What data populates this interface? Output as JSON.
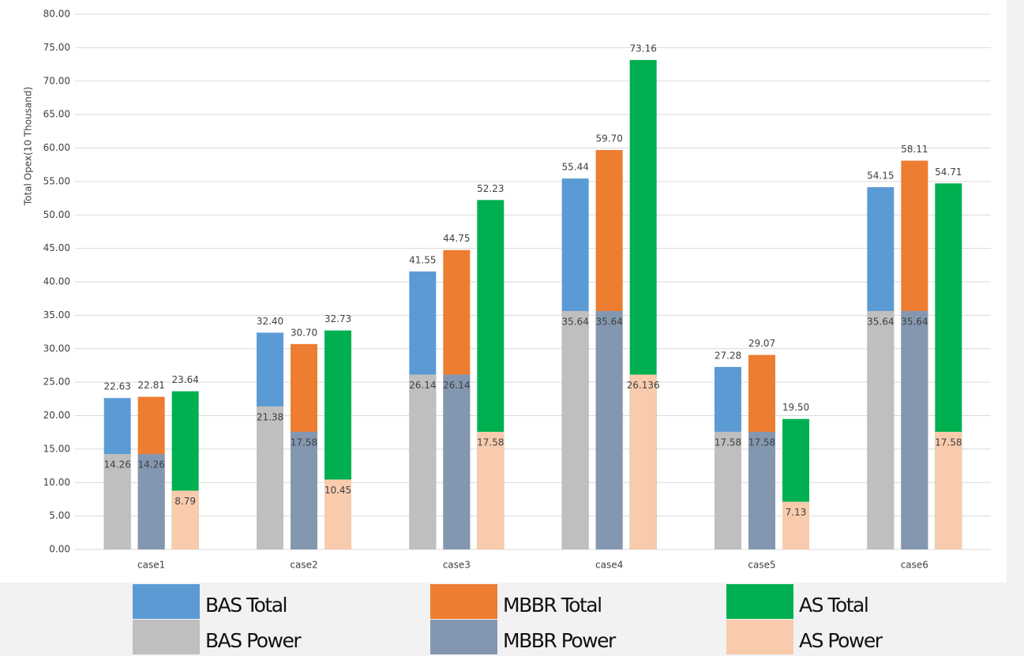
{
  "chart_data": {
    "type": "bar",
    "y_label": "Total Opex(10 Thousand)",
    "categories": [
      "case1",
      "case2",
      "case3",
      "case4",
      "case5",
      "case6"
    ],
    "series": [
      {
        "name": "BAS Total",
        "color": "#5b9bd5",
        "values": [
          22.63,
          32.4,
          41.55,
          55.44,
          27.28,
          54.15
        ],
        "value_labels": [
          "22.63",
          "32.40",
          "41.55",
          "55.44",
          "27.28",
          "54.15"
        ]
      },
      {
        "name": "MBBR Total",
        "color": "#ed7d31",
        "values": [
          22.81,
          30.7,
          44.75,
          59.7,
          29.07,
          58.11
        ],
        "value_labels": [
          "22.81",
          "30.70",
          "44.75",
          "59.70",
          "29.07",
          "58.11"
        ]
      },
      {
        "name": "AS Total",
        "color": "#00b050",
        "values": [
          23.64,
          32.73,
          52.23,
          73.16,
          19.5,
          54.71
        ],
        "value_labels": [
          "23.64",
          "32.73",
          "52.23",
          "73.16",
          "19.50",
          "54.71"
        ]
      },
      {
        "name": "BAS Power",
        "color": "#bfbfbf",
        "values": [
          14.26,
          21.38,
          26.14,
          35.64,
          17.58,
          35.64
        ],
        "value_labels": [
          "14.26",
          "21.38",
          "26.14",
          "35.64",
          "17.58",
          "35.64"
        ]
      },
      {
        "name": "MBBR Power",
        "color": "#8497b0",
        "values": [
          14.26,
          17.58,
          26.14,
          35.64,
          17.58,
          35.64
        ],
        "value_labels": [
          "14.26",
          "17.58",
          "26.14",
          "35.64",
          "17.58",
          "35.64"
        ]
      },
      {
        "name": "AS  Power",
        "color": "#f8cbad",
        "values": [
          8.79,
          10.45,
          17.58,
          26.136,
          7.13,
          17.58
        ],
        "value_labels": [
          "8.79",
          "10.45",
          "17.58",
          "26.136",
          "7.13",
          "17.58"
        ]
      }
    ],
    "ylim": [
      0,
      80
    ],
    "yticks": [
      {
        "value": 0,
        "label": "0.00"
      },
      {
        "value": 5,
        "label": "5.00"
      },
      {
        "value": 10,
        "label": "10.00"
      },
      {
        "value": 15,
        "label": "15.00"
      },
      {
        "value": 20,
        "label": "20.00"
      },
      {
        "value": 25,
        "label": "25.00"
      },
      {
        "value": 30,
        "label": "30.00"
      },
      {
        "value": 35,
        "label": "35.00"
      },
      {
        "value": 40,
        "label": "40.00"
      },
      {
        "value": 45,
        "label": "45.00"
      },
      {
        "value": 50,
        "label": "50.00"
      },
      {
        "value": 55,
        "label": "55.00"
      },
      {
        "value": 60,
        "label": "60.00"
      },
      {
        "value": 65,
        "label": "65.00"
      },
      {
        "value": 70,
        "label": "70.00"
      },
      {
        "value": 75,
        "label": "75.00"
      },
      {
        "value": 80,
        "label": "80.00"
      }
    ],
    "grid": true
  }
}
